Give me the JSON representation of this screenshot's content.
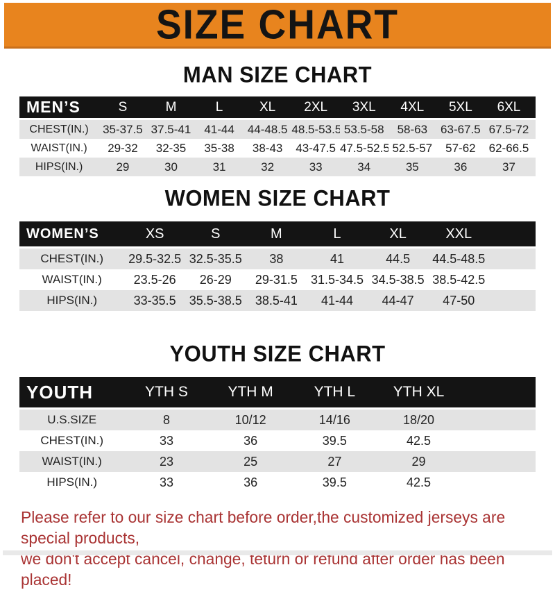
{
  "banner": {
    "title": "SIZE CHART",
    "bg_color": "#E8841E",
    "text_color": "#141414"
  },
  "sections": [
    {
      "title": "MAN SIZE CHART",
      "table": {
        "label": "MEN’S",
        "columns": [
          "S",
          "M",
          "L",
          "XL",
          "2XL",
          "3XL",
          "4XL",
          "5XL",
          "6XL"
        ],
        "rows": [
          {
            "label": "CHEST(IN.)",
            "values": [
              "35-37.5",
              "37.5-41",
              "41-44",
              "44-48.5",
              "48.5-53.5",
              "53.5-58",
              "58-63",
              "63-67.5",
              "67.5-72"
            ]
          },
          {
            "label": "WAIST(IN.)",
            "values": [
              "29-32",
              "32-35",
              "35-38",
              "38-43",
              "43-47.5",
              "47.5-52.5",
              "52.5-57",
              "57-62",
              "62-66.5"
            ]
          },
          {
            "label": "HIPS(IN.)",
            "values": [
              "29",
              "30",
              "31",
              "32",
              "33",
              "34",
              "35",
              "36",
              "37"
            ]
          }
        ]
      }
    },
    {
      "title": "WOMEN SIZE CHART",
      "table": {
        "label": "WOMEN’S",
        "columns": [
          "XS",
          "S",
          "M",
          "L",
          "XL",
          "XXL"
        ],
        "rows": [
          {
            "label": "CHEST(IN.)",
            "values": [
              "29.5-32.5",
              "32.5-35.5",
              "38",
              "41",
              "44.5",
              "44.5-48.5"
            ]
          },
          {
            "label": "WAIST(IN.)",
            "values": [
              "23.5-26",
              "26-29",
              "29-31.5",
              "31.5-34.5",
              "34.5-38.5",
              "38.5-42.5"
            ]
          },
          {
            "label": "HIPS(IN.)",
            "values": [
              "33-35.5",
              "35.5-38.5",
              "38.5-41",
              "41-44",
              "44-47",
              "47-50"
            ]
          }
        ]
      }
    },
    {
      "title": "YOUTH SIZE CHART",
      "table": {
        "label": "YOUTH",
        "columns": [
          "YTH S",
          "YTH M",
          "YTH L",
          "YTH XL"
        ],
        "rows": [
          {
            "label": "U.S.SIZE",
            "values": [
              "8",
              "10/12",
              "14/16",
              "18/20"
            ]
          },
          {
            "label": "CHEST(IN.)",
            "values": [
              "33",
              "36",
              "39.5",
              "42.5"
            ]
          },
          {
            "label": "WAIST(IN.)",
            "values": [
              "23",
              "25",
              "27",
              "29"
            ]
          },
          {
            "label": "HIPS(IN.)",
            "values": [
              "33",
              "36",
              "39.5",
              "42.5"
            ]
          }
        ]
      }
    }
  ],
  "footer": {
    "line1": "Please refer to our size chart before order,the customized jerseys are special products,",
    "line2": "we don't accept cancel, change, teturn or refund after order has been placed!",
    "text_color": "#A93333"
  }
}
